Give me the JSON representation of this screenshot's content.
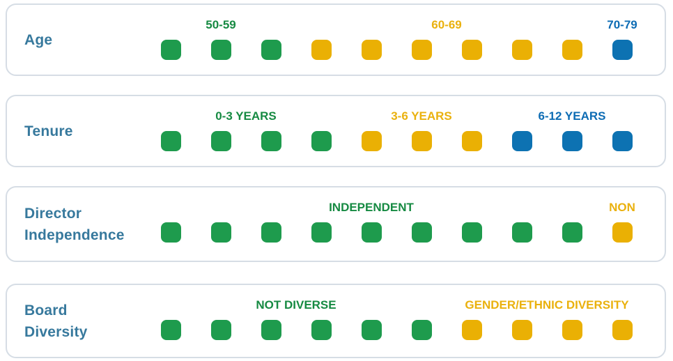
{
  "colors": {
    "green": "#1E9B4D",
    "yellow": "#EAB004",
    "blue": "#0D72B2",
    "label_green": "#168A42",
    "label_yellow": "#EAB10E",
    "label_blue": "#0D6CB4",
    "title": "#37799D",
    "card_border": "#D6DDE5"
  },
  "columns": 10,
  "cards": [
    {
      "id": "age",
      "title_lines": [
        "Age"
      ],
      "groups": [
        {
          "label": "50-59",
          "color": "green",
          "count": 3
        },
        {
          "label": "60-69",
          "color": "yellow",
          "count": 6
        },
        {
          "label": "70-79",
          "color": "blue",
          "count": 1
        }
      ]
    },
    {
      "id": "tenure",
      "title_lines": [
        "Tenure"
      ],
      "groups": [
        {
          "label": "0-3 YEARS",
          "color": "green",
          "count": 4
        },
        {
          "label": "3-6 YEARS",
          "color": "yellow",
          "count": 3
        },
        {
          "label": "6-12 YEARS",
          "color": "blue",
          "count": 3
        }
      ]
    },
    {
      "id": "director-independence",
      "title_lines": [
        "Director",
        "Independence"
      ],
      "groups": [
        {
          "label": "INDEPENDENT",
          "color": "green",
          "count": 9
        },
        {
          "label": "NON",
          "color": "yellow",
          "count": 1
        }
      ]
    },
    {
      "id": "board-diversity",
      "title_lines": [
        "Board",
        "Diversity"
      ],
      "groups": [
        {
          "label": "NOT DIVERSE",
          "color": "green",
          "count": 6
        },
        {
          "label": "GENDER/ETHNIC DIVERSITY",
          "color": "yellow",
          "count": 4
        }
      ]
    }
  ],
  "chart_data": {
    "type": "unit-chart",
    "units_per_row": 10,
    "rows": [
      {
        "category": "Age",
        "segments": [
          {
            "label": "50-59",
            "value": 3,
            "color": "#1E9B4D"
          },
          {
            "label": "60-69",
            "value": 6,
            "color": "#EAB004"
          },
          {
            "label": "70-79",
            "value": 1,
            "color": "#0D72B2"
          }
        ]
      },
      {
        "category": "Tenure",
        "segments": [
          {
            "label": "0-3 YEARS",
            "value": 4,
            "color": "#1E9B4D"
          },
          {
            "label": "3-6 YEARS",
            "value": 3,
            "color": "#EAB004"
          },
          {
            "label": "6-12 YEARS",
            "value": 3,
            "color": "#0D72B2"
          }
        ]
      },
      {
        "category": "Director Independence",
        "segments": [
          {
            "label": "INDEPENDENT",
            "value": 9,
            "color": "#1E9B4D"
          },
          {
            "label": "NON",
            "value": 1,
            "color": "#EAB004"
          }
        ]
      },
      {
        "category": "Board Diversity",
        "segments": [
          {
            "label": "NOT DIVERSE",
            "value": 6,
            "color": "#1E9B4D"
          },
          {
            "label": "GENDER/ETHNIC DIVERSITY",
            "value": 4,
            "color": "#EAB004"
          }
        ]
      }
    ]
  }
}
